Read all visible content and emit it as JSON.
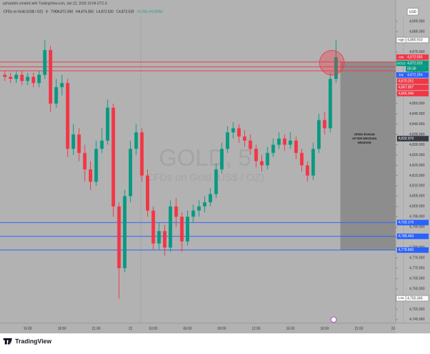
{
  "header": {
    "credit": "azhartahir created with TradingView.com, Jan 22, 2026 19:04 UTC-5",
    "symbol": "CFDs on Gold (US$ / OZ) · 5 · TVC",
    "ohlc": [
      "O4,871.550",
      "H4,874.260",
      "L4,872.520",
      "C4,872.520",
      "+1.015 (+0.02%)"
    ],
    "currency": "USD",
    "brand": "TradingView"
  },
  "chart_data": {
    "type": "candlestick",
    "watermark": [
      "GOLD, 5",
      "CFDs on Gold (US$ / OZ)"
    ],
    "categories": [
      null,
      null,
      null,
      null,
      "15:00",
      null,
      null,
      null,
      null,
      null,
      "18:00",
      null,
      null,
      null,
      null,
      null,
      "21:00",
      null,
      null,
      null,
      null,
      null,
      "22",
      null,
      null,
      null,
      "03:00",
      null,
      null,
      null,
      null,
      null,
      "06:00",
      null,
      null,
      null,
      null,
      null,
      "09:00",
      null,
      null,
      null,
      null,
      null,
      "12:00",
      null,
      null,
      null,
      null,
      null,
      "15:00",
      null,
      null,
      null,
      null,
      null,
      "18:00",
      null,
      null,
      null,
      null,
      null,
      "21:00",
      null,
      null,
      null,
      null,
      null,
      "23"
    ],
    "open": [
      4864,
      4863,
      4862,
      4864,
      4861,
      4863,
      4860,
      4864,
      4876,
      4850,
      4858,
      4860,
      4828,
      4835,
      4826,
      4818,
      4812,
      4828,
      4832,
      4848,
      4800,
      4770,
      4805,
      4828,
      4836,
      4815,
      4798,
      4782,
      4788,
      4780,
      4800,
      4795,
      4783,
      4795,
      4798,
      4800,
      4802,
      4806,
      4818,
      4828,
      4836,
      4838,
      4834,
      4832,
      4828,
      4822,
      4820,
      4826,
      4830,
      4833,
      4830,
      4832,
      4826,
      4820,
      4815,
      4828,
      4842,
      4838,
      4862,
      null,
      null,
      null,
      null,
      null,
      null,
      null,
      null,
      null,
      null
    ],
    "high": [
      4866,
      4865,
      4866,
      4866,
      4865,
      4865,
      4866,
      4881,
      4878,
      4862,
      4864,
      4862,
      4840,
      4838,
      4830,
      4822,
      4832,
      4838,
      4852,
      4850,
      4802,
      4808,
      4832,
      4840,
      4838,
      4818,
      4800,
      4792,
      4791,
      4803,
      4804,
      4797,
      4798,
      4801,
      4803,
      4805,
      4809,
      4821,
      4831,
      4839,
      4841,
      4840,
      4837,
      4835,
      4830,
      4825,
      4829,
      4833,
      4836,
      4835,
      4836,
      4834,
      4828,
      4822,
      4831,
      4845,
      4846,
      4865,
      4880.91,
      null,
      null,
      null,
      null,
      null,
      null,
      null,
      null,
      null,
      null
    ],
    "low": [
      4861,
      4860,
      4860,
      4859,
      4859,
      4858,
      4858,
      4862,
      4846,
      4848,
      4854,
      4824,
      4825,
      4822,
      4812,
      4808,
      4810,
      4826,
      4830,
      4795,
      4755.345,
      4768,
      4802,
      4825,
      4812,
      4795,
      4779,
      4779,
      4776,
      4778,
      4790,
      4778,
      4781,
      4792,
      4795,
      4797,
      4800,
      4804,
      4816,
      4826,
      4833,
      4831,
      4829,
      4825,
      4819,
      4817,
      4818,
      4824,
      4828,
      4827,
      4828,
      4823,
      4817,
      4812,
      4813,
      4826,
      4835,
      4836,
      4860,
      null,
      null,
      null,
      null,
      null,
      null,
      null,
      null,
      null,
      null
    ],
    "close": [
      4863,
      4862,
      4864,
      4861,
      4863,
      4860,
      4864,
      4876,
      4850,
      4858,
      4860,
      4828,
      4835,
      4826,
      4818,
      4812,
      4828,
      4832,
      4848,
      4800,
      4770,
      4805,
      4828,
      4836,
      4815,
      4798,
      4782,
      4788,
      4780,
      4800,
      4795,
      4783,
      4795,
      4798,
      4800,
      4802,
      4806,
      4818,
      4828,
      4836,
      4838,
      4834,
      4832,
      4828,
      4822,
      4820,
      4826,
      4830,
      4833,
      4830,
      4832,
      4826,
      4820,
      4815,
      4828,
      4842,
      4838,
      4862,
      4872.52,
      null,
      null,
      null,
      null,
      null,
      null,
      null,
      null,
      null,
      null
    ],
    "up_color": "#089981",
    "down_color": "#f23645",
    "ylim": [
      4743.3,
      4892
    ],
    "yticks": [
      {
        "value": 4890,
        "label": "4,890.000"
      },
      {
        "value": 4885,
        "label": "4,885.000"
      },
      {
        "value": 4880,
        "label": "4,880.000"
      },
      {
        "value": 4875,
        "label": "4,875.000"
      },
      {
        "value": 4870,
        "label": "4,870.000"
      },
      {
        "value": 4865,
        "label": "4,865.000"
      },
      {
        "value": 4860,
        "label": "4,860.000"
      },
      {
        "value": 4855,
        "label": "4,855.000"
      },
      {
        "value": 4850,
        "label": "4,850.000"
      },
      {
        "value": 4845,
        "label": "4,845.000"
      },
      {
        "value": 4840,
        "label": "4,840.000"
      },
      {
        "value": 4835,
        "label": "4,835.000"
      },
      {
        "value": 4830,
        "label": "4,830.000"
      },
      {
        "value": 4825,
        "label": "4,825.000"
      },
      {
        "value": 4820,
        "label": "4,820.000"
      },
      {
        "value": 4815,
        "label": "4,815.000"
      },
      {
        "value": 4810,
        "label": "4,810.000"
      },
      {
        "value": 4805,
        "label": "4,805.000"
      },
      {
        "value": 4800,
        "label": "4,800.000"
      },
      {
        "value": 4795,
        "label": "4,795.000"
      },
      {
        "value": 4790,
        "label": "4,790.000"
      },
      {
        "value": 4785,
        "label": "4,785.000"
      },
      {
        "value": 4780,
        "label": "4,780.000"
      },
      {
        "value": 4775,
        "label": "4,775.000"
      },
      {
        "value": 4770,
        "label": "4,770.000"
      },
      {
        "value": 4765,
        "label": "4,765.000"
      },
      {
        "value": 4760,
        "label": "4,760.000"
      },
      {
        "value": 4755,
        "label": "4,755.000"
      },
      {
        "value": 4750,
        "label": "4,750.000"
      },
      {
        "value": 4745,
        "label": "4,745.000"
      }
    ],
    "price_tags": [
      {
        "name": "High",
        "value": 4880.91,
        "label": "4,880.910",
        "color": "#ffffff",
        "line": false
      },
      {
        "name": "Ask",
        "value": 4872.555,
        "label": "4,872.555",
        "color": "#f23645",
        "line": false
      },
      {
        "name": "GOLD",
        "value": 4872.52,
        "label": "4,872.520",
        "color": "#089981",
        "timer": "00:39",
        "line": false
      },
      {
        "name": "Bid",
        "value": 4872.294,
        "label": "4,872.294",
        "color": "#2962ff",
        "line": false
      },
      {
        "value": 4870.251,
        "label": "4,870.251",
        "color": "#f23645",
        "line": true
      },
      {
        "value": 4867.897,
        "label": "4,867.897",
        "color": "#f23645",
        "line": true
      },
      {
        "value": 4865.946,
        "label": "4,865.946",
        "color": "#f23645",
        "line": true
      },
      {
        "value": 4832.97,
        "label": "4,832.970",
        "color": "#363a45",
        "line": false
      },
      {
        "value": 4792.17,
        "label": "4,792.170",
        "color": "#2962ff",
        "line": true
      },
      {
        "value": 4785.46,
        "label": "4,785.460",
        "color": "#2962ff",
        "line": true
      },
      {
        "value": 4778.8,
        "label": "4,778.800",
        "color": "#2962ff",
        "line": true
      },
      {
        "name": "Low",
        "value": 4755.345,
        "label": "4,755.345",
        "color": "#ffffff",
        "line": false
      }
    ],
    "annotation": {
      "lines": [
        "OPEN RANGE",
        "AFTER BROKEN",
        "WINDOW"
      ],
      "top": 4870.251,
      "bottom": 4778.8
    }
  }
}
